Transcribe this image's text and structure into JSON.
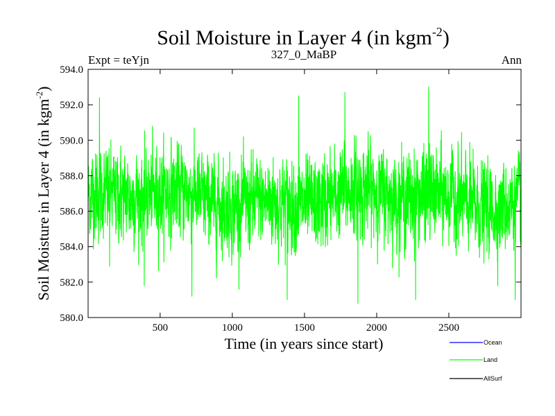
{
  "chart_data": {
    "type": "line",
    "title_main": "Soil Moisture in Layer 4 (in kgm",
    "title_sup": "-2",
    "title_close": ")",
    "left_label": "Expt = teYjn",
    "center_label": "327_0_MaBP",
    "right_label": "Ann",
    "xlabel": "Time (in years since start)",
    "ylabel_main": "Soil Moisture in Layer 4 (in kgm",
    "ylabel_sup": "-2",
    "ylabel_close": ")",
    "xlim": [
      1,
      3000
    ],
    "ylim": [
      580.0,
      594.0
    ],
    "xticks": [
      500,
      1000,
      1500,
      2000,
      2500
    ],
    "xtick_labels": [
      "500",
      "1000",
      "1500",
      "2000",
      "2500"
    ],
    "yticks": [
      580,
      582,
      584,
      586,
      588,
      590,
      592,
      594
    ],
    "ytick_labels": [
      "580.0",
      "582.0",
      "584.0",
      "586.0",
      "588.0",
      "590.0",
      "592.0",
      "594.0"
    ],
    "series": [
      {
        "name": "Ocean",
        "color": "#0000ff",
        "mean": null,
        "values": []
      },
      {
        "name": "Land",
        "color": "#00ff00",
        "mean": 586.7,
        "std": 1.8,
        "min": 580.8,
        "max": 593.0,
        "extremes": [
          {
            "x": 80,
            "y": 592.4
          },
          {
            "x": 150,
            "y": 582.9
          },
          {
            "x": 390,
            "y": 581.8
          },
          {
            "x": 720,
            "y": 581.2
          },
          {
            "x": 1380,
            "y": 581.0
          },
          {
            "x": 1460,
            "y": 592.5
          },
          {
            "x": 1780,
            "y": 592.7
          },
          {
            "x": 1870,
            "y": 580.8
          },
          {
            "x": 2270,
            "y": 581.0
          },
          {
            "x": 2360,
            "y": 593.0
          },
          {
            "x": 2960,
            "y": 581.0
          }
        ]
      },
      {
        "name": "AllSurf",
        "color": "#000000",
        "mean": null,
        "values": []
      }
    ],
    "legend": [
      "Ocean",
      "Land",
      "AllSurf"
    ],
    "legend_position": "bottom-right",
    "grid": false
  }
}
